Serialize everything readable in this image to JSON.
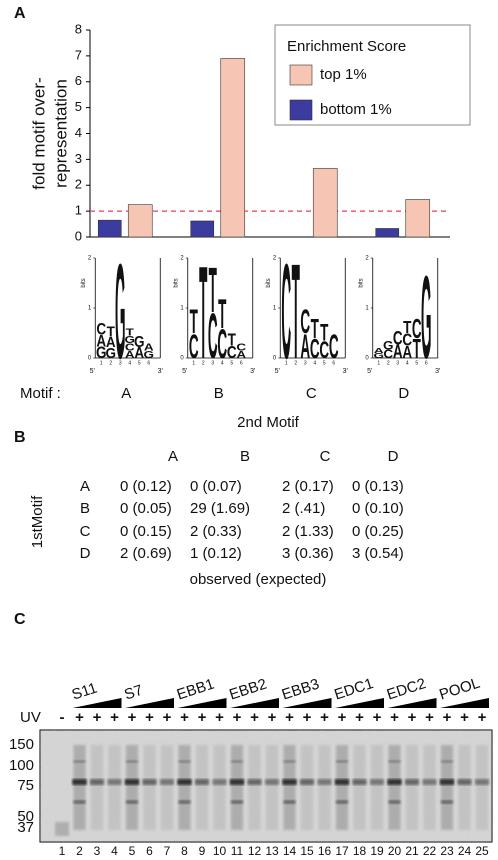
{
  "panel_labels": [
    "A",
    "B",
    "C"
  ],
  "chart_data": {
    "type": "bar",
    "ylabel": [
      "fold motif over-",
      "representation"
    ],
    "category_label": "Motif :",
    "categories": [
      "A",
      "B",
      "C",
      "D"
    ],
    "series": [
      {
        "name": "top 1%",
        "color": "#f6c5b3",
        "values": [
          1.25,
          6.9,
          2.65,
          1.45
        ]
      },
      {
        "name": "bottom 1%",
        "color": "#3b3ba0",
        "values": [
          0.65,
          0.62,
          0,
          0.33
        ]
      }
    ],
    "ylim": [
      0,
      8
    ],
    "yticks": [
      0,
      1,
      2,
      3,
      4,
      5,
      6,
      7,
      8
    ],
    "hline": 1,
    "hline_color": "#e0405a",
    "legend_title": "Enrichment Score",
    "legend": "upper right"
  },
  "logos": {
    "ylabel": "bits",
    "ylim": [
      0,
      2
    ],
    "yticks": [
      0,
      1,
      2
    ],
    "ends": [
      "5'",
      "3'"
    ],
    "positions": [
      1,
      2,
      3,
      4,
      5,
      6
    ],
    "colors": {
      "A": "#2e9e3e",
      "C": "#3040b0",
      "G": "#f0a818",
      "T": "#d82020"
    },
    "motifs": [
      [
        {
          "letters": [
            "C",
            "A",
            "G"
          ],
          "bits": 0.7
        },
        {
          "letters": [
            "T",
            "A",
            "G"
          ],
          "bits": 0.65
        },
        {
          "letters": [
            "G"
          ],
          "bits": 1.95
        },
        {
          "letters": [
            "T",
            "G",
            "C",
            "A"
          ],
          "bits": 0.6
        },
        {
          "letters": [
            "G",
            "A"
          ],
          "bits": 0.45
        },
        {
          "letters": [
            "A",
            "G"
          ],
          "bits": 0.3
        }
      ],
      [
        {
          "letters": [
            "T",
            "C"
          ],
          "bits": 1.0
        },
        {
          "letters": [
            "T"
          ],
          "bits": 1.9
        },
        {
          "letters": [
            "T",
            "C"
          ],
          "bits": 1.85
        },
        {
          "letters": [
            "T",
            "C"
          ],
          "bits": 1.2
        },
        {
          "letters": [
            "T",
            "C"
          ],
          "bits": 0.5
        },
        {
          "letters": [
            "C",
            "A"
          ],
          "bits": 0.3
        }
      ],
      [
        {
          "letters": [
            "C"
          ],
          "bits": 1.95
        },
        {
          "letters": [
            "T"
          ],
          "bits": 1.95
        },
        {
          "letters": [
            "C",
            "A"
          ],
          "bits": 1.0
        },
        {
          "letters": [
            "T",
            "C"
          ],
          "bits": 0.8
        },
        {
          "letters": [
            "T",
            "C"
          ],
          "bits": 0.7
        },
        {
          "letters": [
            "C"
          ],
          "bits": 0.5
        }
      ],
      [
        {
          "letters": [
            "A",
            "G"
          ],
          "bits": 0.2
        },
        {
          "letters": [
            "G",
            "C"
          ],
          "bits": 0.35
        },
        {
          "letters": [
            "C",
            "A"
          ],
          "bits": 0.55
        },
        {
          "letters": [
            "T",
            "C",
            "A"
          ],
          "bits": 0.75
        },
        {
          "letters": [
            "C",
            "T"
          ],
          "bits": 0.8
        },
        {
          "letters": [
            "G"
          ],
          "bits": 1.7
        }
      ]
    ]
  },
  "table": {
    "title": "2nd Motif",
    "row_title": "1stMotif",
    "columns": [
      "A",
      "B",
      "C",
      "D"
    ],
    "rows": [
      {
        "label": "A",
        "cells": [
          "0 (0.12)",
          "0 (0.07)",
          "2 (0.17)",
          "0 (0.13)"
        ]
      },
      {
        "label": "B",
        "cells": [
          "0 (0.05)",
          "29 (1.69)",
          "2 (.41)",
          "0 (0.10)"
        ]
      },
      {
        "label": "C",
        "cells": [
          "0 (0.15)",
          "2 (0.33)",
          "2 (1.33)",
          "0 (0.25)"
        ]
      },
      {
        "label": "D",
        "cells": [
          "2 (0.69)",
          "1 (0.12)",
          "3 (0.36)",
          "3 (0.54)"
        ]
      }
    ],
    "caption": "observed (expected)"
  },
  "gel": {
    "groups": [
      "S11",
      "S7",
      "EBB1",
      "EBB2",
      "EBB3",
      "EDC1",
      "EDC2",
      "POOL"
    ],
    "uv_label": "UV",
    "uv": [
      "-",
      "+",
      "+",
      "+",
      "+",
      "+",
      "+",
      "+",
      "+",
      "+",
      "+",
      "+",
      "+",
      "+",
      "+",
      "+",
      "+",
      "+",
      "+",
      "+",
      "+",
      "+",
      "+",
      "+",
      "+"
    ],
    "markers": [
      150,
      100,
      75,
      50,
      37
    ],
    "lanes": [
      1,
      2,
      3,
      4,
      5,
      6,
      7,
      8,
      9,
      10,
      11,
      12,
      13,
      14,
      15,
      16,
      17,
      18,
      19,
      20,
      21,
      22,
      23,
      24,
      25
    ]
  }
}
